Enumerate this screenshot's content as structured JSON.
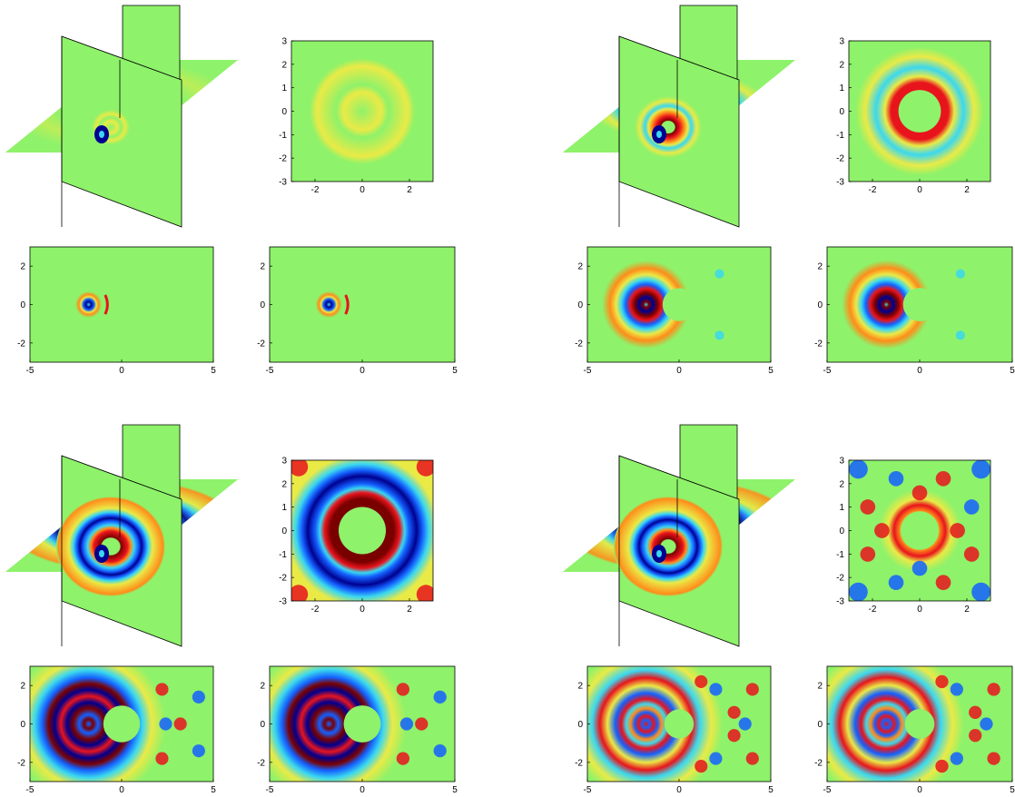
{
  "colors": {
    "dark_red": "#7a0000",
    "red": "#e8141c",
    "orange": "#ff8c1a",
    "yellow": "#eaea46",
    "green": "#8ef26a",
    "cyan": "#3ad8f0",
    "blue": "#1460ff",
    "dark_blue": "#000090"
  },
  "chart_data": [
    {
      "type": "heatmap",
      "panel": "top-left",
      "xlabel": "",
      "ylabel": "",
      "square_xlim": [
        -3,
        3
      ],
      "square_ylim": [
        -3,
        3
      ],
      "square_xticks": [
        "-2",
        "0",
        "2"
      ],
      "square_yticks": [
        "3",
        "2",
        "1",
        "0",
        "-1",
        "-2",
        "-3"
      ],
      "rect_xlim": [
        -5,
        5
      ],
      "rect_ylim": [
        -3,
        3
      ],
      "rect_xticks": [
        "-5",
        "0",
        "5"
      ],
      "rect_yticks": [
        "2",
        "0",
        "-2"
      ],
      "scatterer_radius": 0,
      "amplitude": 0.1
    },
    {
      "type": "heatmap",
      "panel": "top-right",
      "xlabel": "",
      "ylabel": "",
      "square_xlim": [
        -3,
        3
      ],
      "square_ylim": [
        -3,
        3
      ],
      "square_xticks": [
        "-2",
        "0",
        "2"
      ],
      "square_yticks": [
        "3",
        "2",
        "1",
        "0",
        "-1",
        "-2",
        "-3"
      ],
      "rect_xlim": [
        -5,
        5
      ],
      "rect_ylim": [
        -3,
        3
      ],
      "rect_xticks": [
        "-5",
        "0",
        "5"
      ],
      "rect_yticks": [
        "2",
        "0",
        "-2"
      ],
      "scatterer_radius": 0.9,
      "amplitude": 0.8
    },
    {
      "type": "heatmap",
      "panel": "bottom-left",
      "xlabel": "",
      "ylabel": "",
      "square_xlim": [
        -3,
        3
      ],
      "square_ylim": [
        -3,
        3
      ],
      "square_xticks": [
        "-2",
        "0",
        "2"
      ],
      "square_yticks": [
        "3",
        "2",
        "1",
        "0",
        "-1",
        "-2",
        "-3"
      ],
      "rect_xlim": [
        -5,
        5
      ],
      "rect_ylim": [
        -3,
        3
      ],
      "rect_xticks": [
        "-5",
        "0",
        "5"
      ],
      "rect_yticks": [
        "2",
        "0",
        "-2"
      ],
      "scatterer_radius": 1.0,
      "amplitude": 1.0
    },
    {
      "type": "heatmap",
      "panel": "bottom-right",
      "xlabel": "",
      "ylabel": "",
      "square_xlim": [
        -3,
        3
      ],
      "square_ylim": [
        -3,
        3
      ],
      "square_xticks": [
        "-2",
        "0",
        "2"
      ],
      "square_yticks": [
        "3",
        "2",
        "1",
        "0",
        "-1",
        "-2",
        "-3"
      ],
      "rect_xlim": [
        -5,
        5
      ],
      "rect_ylim": [
        -3,
        3
      ],
      "rect_xticks": [
        "-5",
        "0",
        "5"
      ],
      "rect_yticks": [
        "2",
        "0",
        "-2"
      ],
      "scatterer_radius": 0.8,
      "amplitude": 1.0
    }
  ]
}
